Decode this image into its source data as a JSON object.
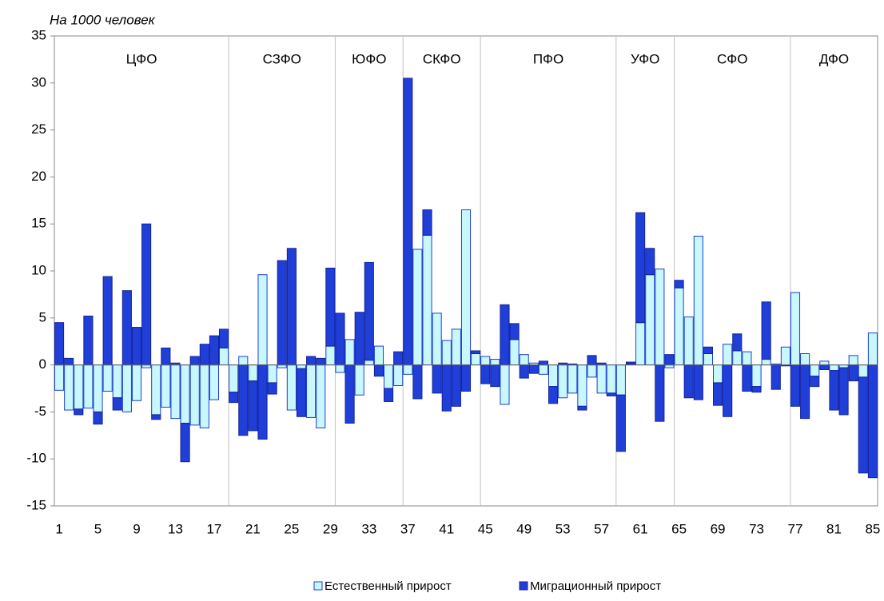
{
  "chart_data": {
    "type": "bar",
    "stacked": true,
    "y_axis_label": "На 1000 человек",
    "categories": [
      1,
      null,
      null,
      null,
      5,
      null,
      null,
      null,
      9,
      null,
      null,
      null,
      13,
      null,
      null,
      null,
      17,
      null,
      null,
      null,
      21,
      null,
      null,
      null,
      25,
      null,
      null,
      null,
      29,
      null,
      null,
      null,
      33,
      null,
      null,
      null,
      37,
      null,
      null,
      null,
      41,
      null,
      null,
      null,
      45,
      null,
      null,
      null,
      49,
      null,
      null,
      null,
      53,
      null,
      null,
      null,
      57,
      null,
      null,
      null,
      61,
      null,
      null,
      null,
      65,
      null,
      null,
      null,
      69,
      null,
      null,
      null,
      73,
      null,
      null,
      null,
      77,
      null,
      null,
      null,
      81,
      null,
      null,
      null,
      85
    ],
    "series": [
      {
        "name": "Естественный прирост",
        "color": "#c8f7fc",
        "edge": "#1d3fd0",
        "values": [
          -2.7,
          -4.8,
          -4.7,
          -4.6,
          -5.0,
          -2.8,
          -3.5,
          -5.0,
          -3.8,
          -0.3,
          -5.3,
          -4.5,
          -5.7,
          -6.2,
          -6.4,
          -6.7,
          -3.7,
          1.8,
          -2.9,
          0.9,
          -1.7,
          9.6,
          -1.9,
          -0.3,
          -4.8,
          -0.4,
          -5.6,
          -6.7,
          2.0,
          -0.8,
          2.7,
          -3.2,
          0.5,
          2.0,
          -2.5,
          -2.2,
          -1.0,
          12.3,
          13.8,
          5.5,
          2.6,
          3.8,
          16.5,
          1.2,
          0.9,
          0.6,
          -4.2,
          2.7,
          1.1,
          0.2,
          -1.0,
          -2.3,
          -3.5,
          -3.0,
          -4.4,
          -1.3,
          -3.0,
          -3.0,
          -3.2,
          0.1,
          4.5,
          9.6,
          10.2,
          -0.3,
          8.2,
          5.1,
          13.7,
          1.2,
          -1.9,
          2.2,
          1.5,
          1.4,
          -2.3,
          0.6,
          0.1,
          1.9,
          7.7,
          1.2,
          -1.2,
          0.4,
          -0.6,
          -0.3,
          1.0,
          -1.3,
          3.4
        ]
      },
      {
        "name": "Миграционный  прирост",
        "color": "#1f3fd8",
        "edge": "#14239a",
        "values": [
          4.5,
          0.7,
          -0.6,
          5.2,
          -1.3,
          9.4,
          -1.3,
          7.9,
          4.0,
          15.0,
          -0.5,
          1.8,
          0.2,
          -4.1,
          0.9,
          2.2,
          3.1,
          2.0,
          -1.1,
          -7.5,
          -5.3,
          -7.9,
          -1.2,
          11.1,
          12.4,
          -5.1,
          0.9,
          0.7,
          8.3,
          5.5,
          -6.2,
          5.6,
          10.4,
          -1.2,
          -1.4,
          1.4,
          30.5,
          -3.6,
          2.7,
          -3.0,
          -4.9,
          -4.4,
          -2.8,
          0.3,
          -2.0,
          -2.3,
          6.4,
          1.7,
          -1.4,
          -0.9,
          0.4,
          -1.8,
          0.2,
          0.1,
          -0.4,
          1.0,
          0.2,
          -0.3,
          -6.0,
          0.2,
          11.7,
          2.8,
          -6.0,
          1.1,
          0.8,
          -3.5,
          -3.7,
          0.7,
          -2.4,
          -5.5,
          1.8,
          -2.8,
          -0.6,
          6.1,
          -2.6,
          -0.1,
          -4.4,
          -5.7,
          -1.1,
          -0.5,
          -4.2,
          -5.0,
          -1.7,
          -10.2,
          -12.0
        ]
      }
    ],
    "districts": [
      {
        "label": "ЦФО",
        "first": 1,
        "last": 18
      },
      {
        "label": "СЗФО",
        "first": 19,
        "last": 29
      },
      {
        "label": "ЮФО",
        "first": 30,
        "last": 36
      },
      {
        "label": "СКФО",
        "first": 37,
        "last": 44
      },
      {
        "label": "ПФО",
        "first": 45,
        "last": 58
      },
      {
        "label": "УФО",
        "first": 59,
        "last": 64
      },
      {
        "label": "СФО",
        "first": 65,
        "last": 76
      },
      {
        "label": "ДФО",
        "first": 77,
        "last": 85
      }
    ],
    "ylim": [
      -15,
      35
    ],
    "yticks": [
      -15,
      -10,
      -5,
      0,
      5,
      10,
      15,
      20,
      25,
      30,
      35
    ],
    "legend": "bottom"
  }
}
